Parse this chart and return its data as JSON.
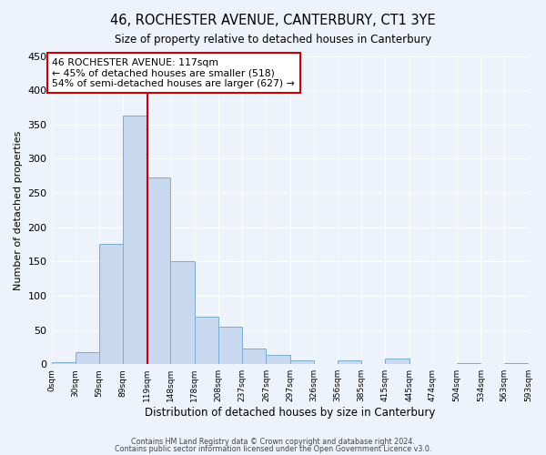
{
  "title": "46, ROCHESTER AVENUE, CANTERBURY, CT1 3YE",
  "subtitle": "Size of property relative to detached houses in Canterbury",
  "xlabel": "Distribution of detached houses by size in Canterbury",
  "ylabel": "Number of detached properties",
  "bar_color": "#c8d8ee",
  "bar_edge_color": "#7aadd4",
  "background_color": "#eef2fb",
  "grid_color": "#ffffff",
  "bin_edges": [
    0,
    30,
    59,
    89,
    119,
    148,
    178,
    208,
    237,
    267,
    297,
    326,
    356,
    385,
    415,
    445,
    474,
    504,
    534,
    563,
    593
  ],
  "bin_labels": [
    "0sqm",
    "30sqm",
    "59sqm",
    "89sqm",
    "119sqm",
    "148sqm",
    "178sqm",
    "208sqm",
    "237sqm",
    "267sqm",
    "297sqm",
    "326sqm",
    "356sqm",
    "385sqm",
    "415sqm",
    "445sqm",
    "474sqm",
    "504sqm",
    "534sqm",
    "563sqm",
    "593sqm"
  ],
  "counts": [
    3,
    18,
    175,
    363,
    272,
    150,
    70,
    55,
    23,
    13,
    5,
    0,
    6,
    0,
    8,
    0,
    0,
    1,
    0,
    2
  ],
  "vline_x": 119,
  "vline_color": "#cc0000",
  "annotation_text": "46 ROCHESTER AVENUE: 117sqm\n← 45% of detached houses are smaller (518)\n54% of semi-detached houses are larger (627) →",
  "annotation_box_color": "#ffffff",
  "annotation_box_edge_color": "#cc0000",
  "ylim": [
    0,
    450
  ],
  "yticks": [
    0,
    50,
    100,
    150,
    200,
    250,
    300,
    350,
    400,
    450
  ],
  "footer1": "Contains HM Land Registry data © Crown copyright and database right 2024.",
  "footer2": "Contains public sector information licensed under the Open Government Licence v3.0."
}
